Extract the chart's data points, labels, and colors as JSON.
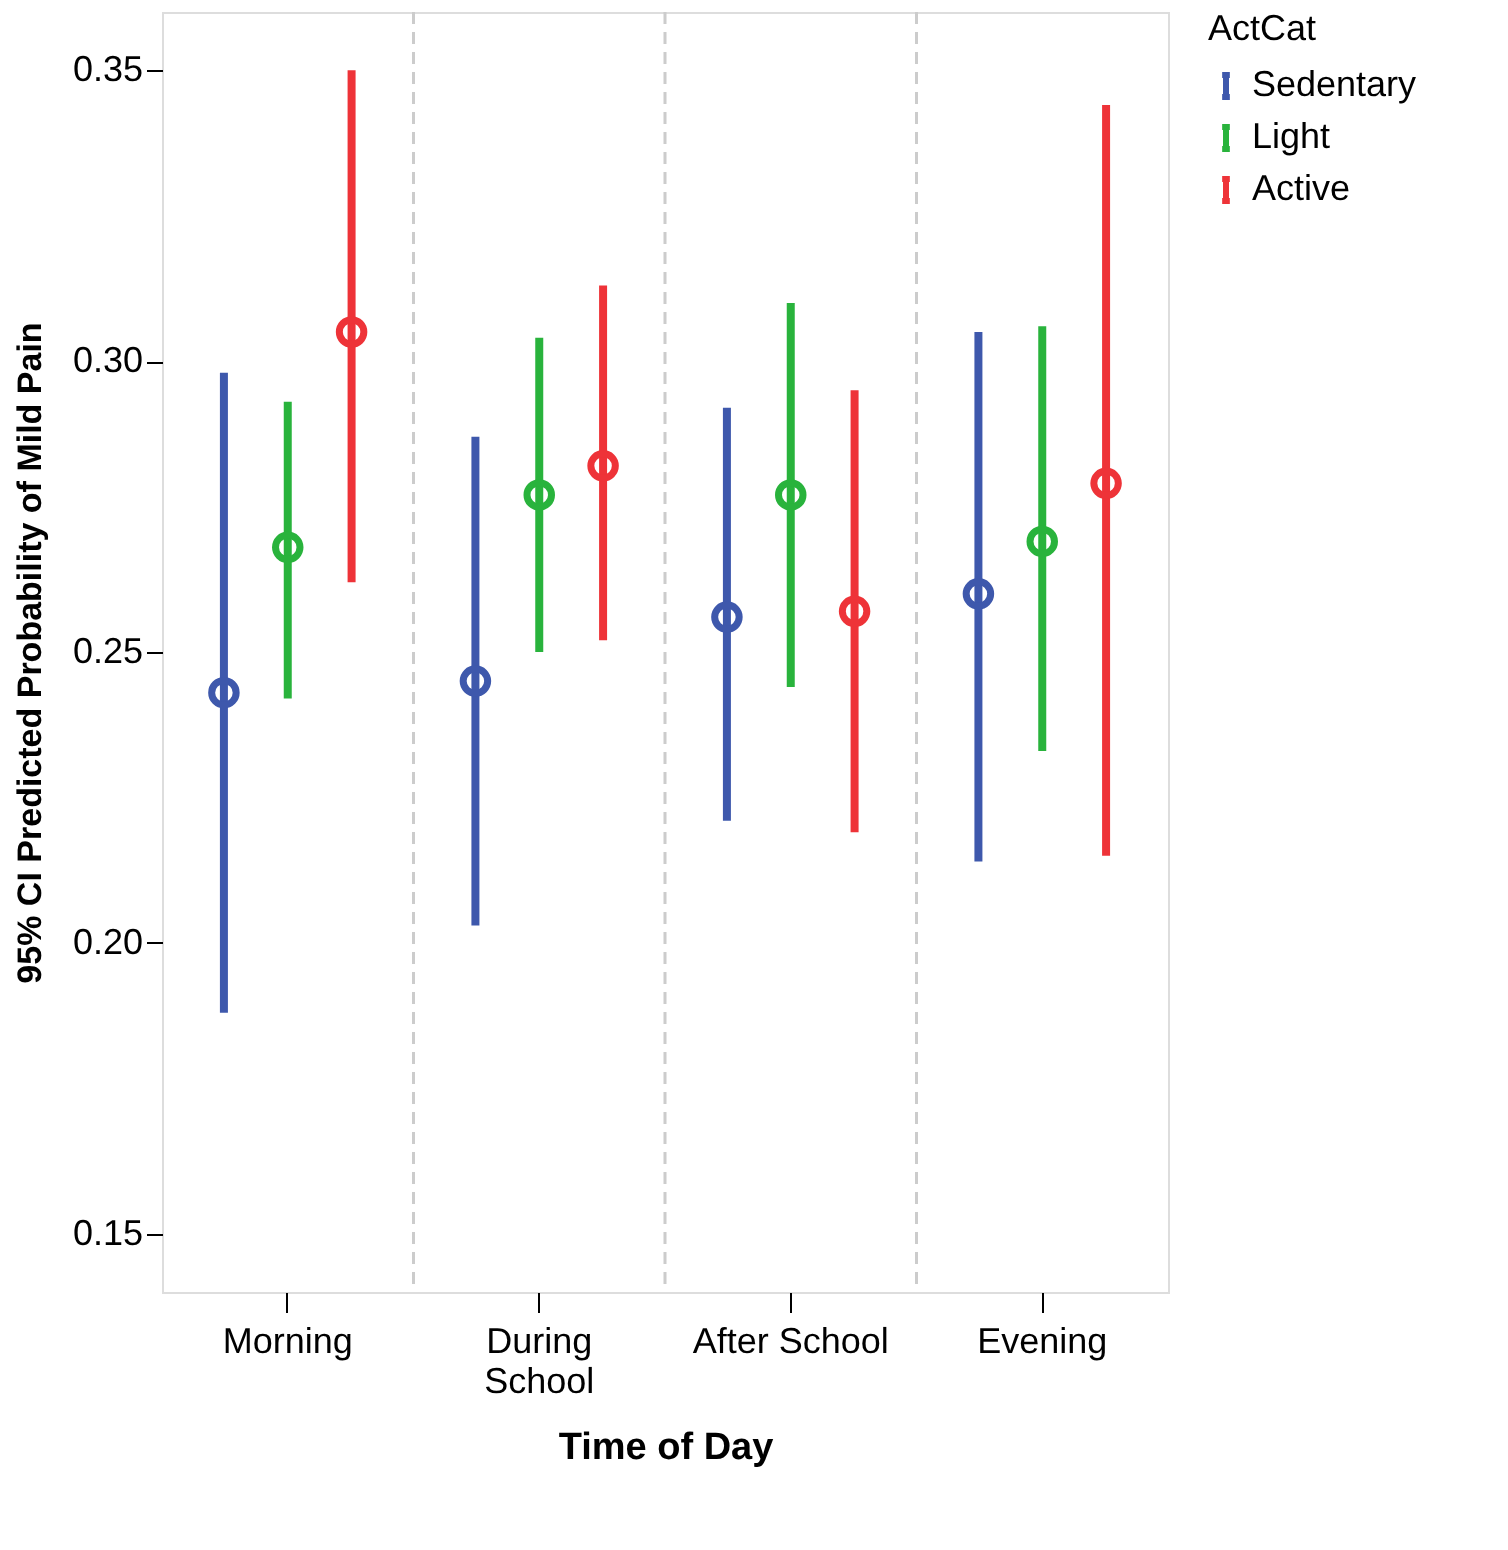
{
  "chart_data": {
    "type": "scatter",
    "xlabel": "Time of Day",
    "ylabel": "95% CI Predicted Probability of Mild Pain",
    "legend_title": "ActCat",
    "categories": [
      "Morning",
      "During School",
      "After School",
      "Evening"
    ],
    "series": [
      {
        "name": "Sedentary",
        "color": "#3e58ac",
        "values": [
          0.243,
          0.245,
          0.256,
          0.26
        ],
        "errors": [
          [
            0.188,
            0.298
          ],
          [
            0.203,
            0.287
          ],
          [
            0.221,
            0.292
          ],
          [
            0.214,
            0.305
          ]
        ]
      },
      {
        "name": "Light",
        "color": "#29b33c",
        "values": [
          0.268,
          0.277,
          0.277,
          0.269
        ],
        "errors": [
          [
            0.242,
            0.293
          ],
          [
            0.25,
            0.304
          ],
          [
            0.244,
            0.31
          ],
          [
            0.233,
            0.306
          ]
        ]
      },
      {
        "name": "Active",
        "color": "#ee3338",
        "values": [
          0.305,
          0.282,
          0.257,
          0.279
        ],
        "errors": [
          [
            0.262,
            0.35
          ],
          [
            0.252,
            0.313
          ],
          [
            0.219,
            0.295
          ],
          [
            0.215,
            0.344
          ]
        ]
      }
    ],
    "ylim": [
      0.14,
      0.36
    ],
    "yticks": [
      {
        "value": 0.15,
        "label": "0.15"
      },
      {
        "value": 0.2,
        "label": "0.20"
      },
      {
        "value": 0.25,
        "label": "0.25"
      },
      {
        "value": 0.3,
        "label": "0.30"
      },
      {
        "value": 0.35,
        "label": "0.35"
      }
    ],
    "marker": "circle",
    "legend": "top right",
    "grid": false
  }
}
